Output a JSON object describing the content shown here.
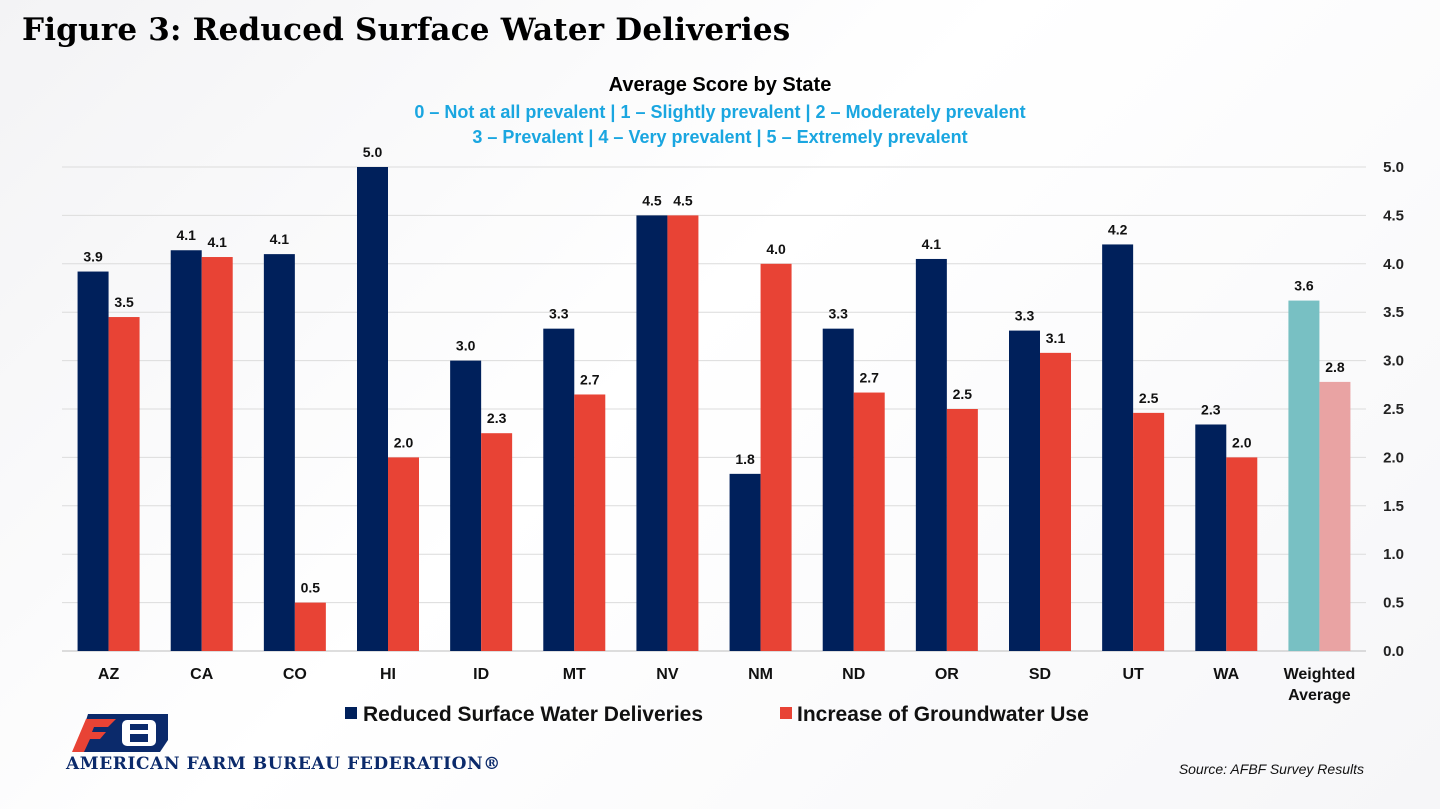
{
  "figure_title": "Figure 3: Reduced Surface Water Deliveries",
  "source": "Source: AFBF Survey Results",
  "organization": "AMERICAN FARM BUREAU FEDERATION®",
  "colors": {
    "surface": "#00205b",
    "groundwater": "#e84335",
    "avg_surface": "#78c0c3",
    "avg_groundwater": "#e9a3a3",
    "subtitle_scale": "#1aa6e0"
  },
  "chart_data": {
    "type": "bar",
    "title": "Average Score by State",
    "subtitle_lines": [
      "0 – Not at all prevalent | 1 – Slightly prevalent | 2 – Moderately prevalent",
      "3 – Prevalent | 4 – Very prevalent | 5 – Extremely prevalent"
    ],
    "categories": [
      "AZ",
      "CA",
      "CO",
      "HI",
      "ID",
      "MT",
      "NV",
      "NM",
      "ND",
      "OR",
      "SD",
      "UT",
      "WA",
      "Weighted Average"
    ],
    "series": [
      {
        "name": "Reduced Surface Water Deliveries",
        "values": [
          3.92,
          4.14,
          4.1,
          5.0,
          3.0,
          3.33,
          4.5,
          1.83,
          3.33,
          4.05,
          3.31,
          4.2,
          2.34,
          3.62
        ],
        "labels": [
          "3.9",
          "4.1",
          "4.1",
          "5.0",
          "3.0",
          "3.3",
          "4.5",
          "1.8",
          "3.3",
          "4.1",
          "3.3",
          "4.2",
          "2.3",
          "3.6"
        ]
      },
      {
        "name": "Increase of Groundwater Use",
        "values": [
          3.45,
          4.07,
          0.5,
          2.0,
          2.25,
          2.65,
          4.5,
          4.0,
          2.67,
          2.5,
          3.08,
          2.46,
          2.0,
          2.78
        ],
        "labels": [
          "3.5",
          "4.1",
          "0.5",
          "2.0",
          "2.3",
          "2.7",
          "4.5",
          "4.0",
          "2.7",
          "2.5",
          "3.1",
          "2.5",
          "2.0",
          "2.8"
        ]
      }
    ],
    "ylim": [
      0,
      5
    ],
    "yticks": [
      "0.0",
      "0.5",
      "1.0",
      "1.5",
      "2.0",
      "2.5",
      "3.0",
      "3.5",
      "4.0",
      "4.5",
      "5.0"
    ],
    "y_axis_side": "right",
    "grid": true,
    "legend_position": "bottom"
  }
}
